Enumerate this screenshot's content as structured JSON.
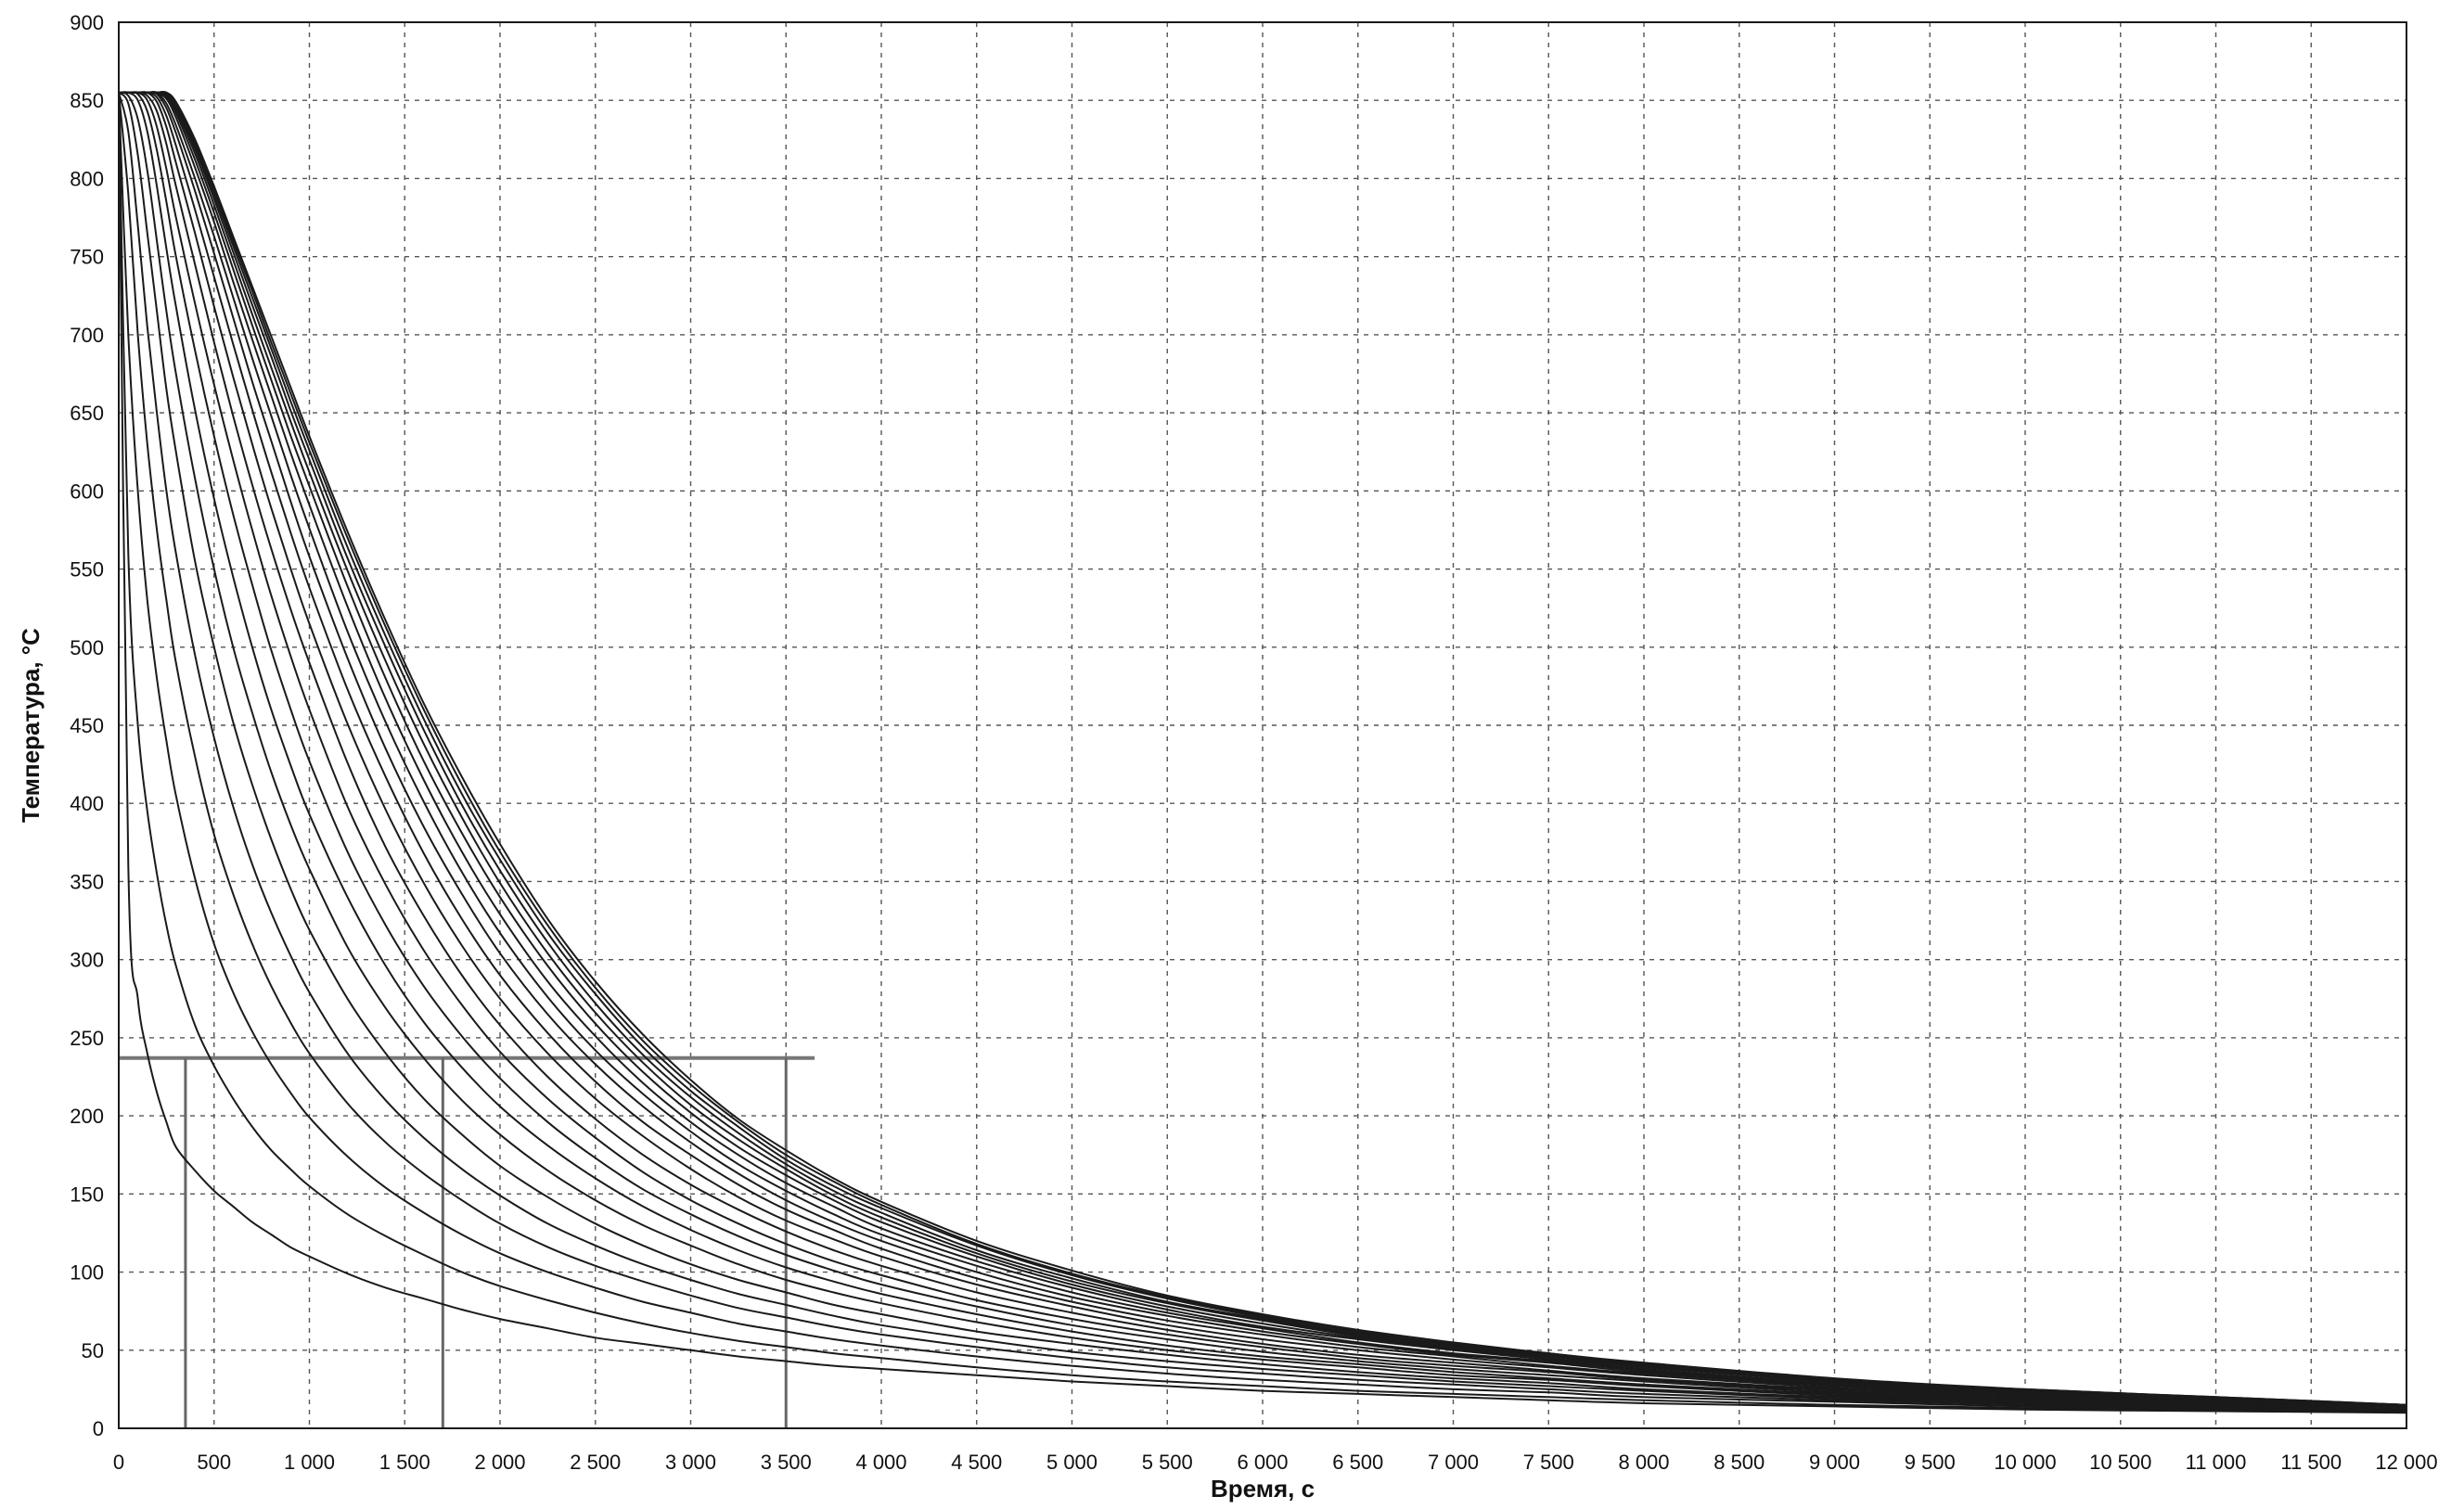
{
  "chart_data": {
    "type": "line",
    "xlabel": "Время, с",
    "ylabel": "Температура, °C",
    "xlim": [
      0,
      12000
    ],
    "ylim": [
      0,
      900
    ],
    "x_ticks": [
      0,
      500,
      1000,
      1500,
      2000,
      2500,
      3000,
      3500,
      4000,
      4500,
      5000,
      5500,
      6000,
      6500,
      7000,
      7500,
      8000,
      8500,
      9000,
      9500,
      10000,
      10500,
      11000,
      11500,
      12000
    ],
    "x_tick_labels": [
      "0",
      "500",
      "1 000",
      "1 500",
      "2 000",
      "2 500",
      "3 000",
      "3 500",
      "4 000",
      "4 500",
      "5 000",
      "5 500",
      "6 000",
      "6 500",
      "7 000",
      "7 500",
      "8 000",
      "8 500",
      "9 000",
      "9 500",
      "10 000",
      "10 500",
      "11 000",
      "11 500",
      "12 000"
    ],
    "y_ticks": [
      0,
      50,
      100,
      150,
      200,
      250,
      300,
      350,
      400,
      450,
      500,
      550,
      600,
      650,
      700,
      750,
      800,
      850,
      900
    ],
    "y_tick_labels": [
      "0",
      "50",
      "100",
      "150",
      "200",
      "250",
      "300",
      "350",
      "400",
      "450",
      "500",
      "550",
      "600",
      "650",
      "700",
      "750",
      "800",
      "850",
      "900"
    ],
    "grid": true,
    "line_color": "#1a1a1a",
    "grid_color": "#555555",
    "x": [
      0,
      50,
      100,
      150,
      200,
      250,
      300,
      400,
      500,
      600,
      700,
      800,
      900,
      1000,
      1200,
      1400,
      1600,
      1800,
      2000,
      2250,
      2500,
      2750,
      3000,
      3250,
      3500,
      3750,
      4000,
      4500,
      5000,
      5500,
      6000,
      6500,
      7000,
      7500,
      8000,
      9000,
      10000,
      11000,
      12000
    ],
    "series": [
      {
        "values": [
          855,
          360,
          275,
          240,
          215,
          196,
          180,
          165,
          152,
          142,
          132,
          124,
          116,
          110,
          99,
          90,
          83,
          76,
          70,
          64,
          58,
          54,
          50,
          46,
          43,
          40,
          38,
          34,
          30,
          27,
          24,
          22,
          20,
          18,
          16,
          14,
          12,
          11,
          10
        ]
      },
      {
        "values": [
          855,
          560,
          450,
          395,
          355,
          322,
          296,
          258,
          232,
          211,
          193,
          178,
          166,
          155,
          137,
          123,
          111,
          100,
          91,
          82,
          74,
          67,
          61,
          56,
          52,
          48,
          45,
          39,
          34,
          30,
          27,
          24,
          22,
          20,
          18,
          15,
          13,
          12,
          11
        ]
      },
      {
        "values": [
          855,
          700,
          600,
          530,
          480,
          440,
          405,
          352,
          310,
          279,
          254,
          233,
          215,
          199,
          174,
          154,
          138,
          124,
          112,
          100,
          90,
          81,
          74,
          67,
          62,
          57,
          53,
          46,
          40,
          35,
          31,
          28,
          25,
          23,
          20,
          17,
          14,
          12,
          11
        ]
      },
      {
        "values": [
          855,
          790,
          700,
          630,
          575,
          530,
          490,
          430,
          380,
          342,
          310,
          283,
          260,
          240,
          208,
          183,
          163,
          146,
          131,
          116,
          104,
          94,
          85,
          77,
          71,
          65,
          60,
          52,
          45,
          39,
          35,
          31,
          28,
          25,
          22,
          18,
          15,
          13,
          11
        ]
      },
      {
        "values": [
          855,
          830,
          770,
          705,
          650,
          600,
          560,
          495,
          442,
          398,
          361,
          330,
          303,
          279,
          240,
          210,
          186,
          166,
          149,
          131,
          117,
          105,
          95,
          86,
          79,
          72,
          66,
          57,
          49,
          43,
          38,
          34,
          30,
          27,
          24,
          19,
          16,
          13,
          12
        ]
      },
      {
        "values": [
          855,
          848,
          815,
          765,
          715,
          665,
          625,
          555,
          500,
          452,
          412,
          377,
          346,
          319,
          275,
          240,
          211,
          188,
          168,
          148,
          131,
          117,
          105,
          95,
          87,
          79,
          73,
          62,
          54,
          47,
          41,
          36,
          32,
          29,
          25,
          20,
          17,
          14,
          12
        ]
      },
      {
        "values": [
          855,
          853,
          838,
          805,
          760,
          715,
          675,
          608,
          550,
          500,
          458,
          420,
          387,
          358,
          308,
          269,
          237,
          210,
          188,
          165,
          146,
          130,
          117,
          105,
          95,
          87,
          80,
          68,
          58,
          50,
          44,
          39,
          34,
          31,
          27,
          21,
          17,
          14,
          12
        ]
      },
      {
        "values": [
          855,
          855,
          850,
          830,
          795,
          755,
          718,
          652,
          595,
          545,
          500,
          460,
          425,
          393,
          340,
          296,
          260,
          231,
          206,
          181,
          160,
          142,
          127,
          114,
          103,
          94,
          86,
          73,
          62,
          53,
          46,
          41,
          36,
          32,
          28,
          22,
          18,
          15,
          12
        ]
      },
      {
        "values": [
          855,
          855,
          854,
          843,
          818,
          785,
          750,
          690,
          635,
          585,
          540,
          498,
          461,
          427,
          369,
          322,
          283,
          251,
          224,
          196,
          173,
          153,
          137,
          123,
          111,
          101,
          92,
          78,
          66,
          57,
          49,
          43,
          38,
          34,
          30,
          23,
          19,
          15,
          13
        ]
      },
      {
        "values": [
          855,
          855,
          855,
          850,
          833,
          806,
          775,
          720,
          668,
          620,
          575,
          533,
          495,
          460,
          398,
          348,
          306,
          271,
          241,
          211,
          186,
          164,
          146,
          131,
          118,
          107,
          98,
          82,
          70,
          60,
          52,
          45,
          40,
          36,
          31,
          24,
          19,
          16,
          13
        ]
      },
      {
        "values": [
          855,
          855,
          855,
          853,
          843,
          822,
          795,
          745,
          695,
          648,
          604,
          563,
          525,
          490,
          426,
          372,
          328,
          290,
          258,
          225,
          198,
          175,
          156,
          140,
          126,
          114,
          104,
          87,
          74,
          63,
          54,
          47,
          42,
          37,
          32,
          25,
          20,
          16,
          13
        ]
      },
      {
        "values": [
          855,
          855,
          855,
          855,
          849,
          833,
          810,
          765,
          718,
          673,
          630,
          589,
          551,
          515,
          451,
          396,
          349,
          309,
          275,
          240,
          211,
          187,
          166,
          148,
          133,
          121,
          110,
          92,
          78,
          66,
          57,
          50,
          44,
          39,
          34,
          26,
          21,
          17,
          13
        ]
      },
      {
        "values": [
          855,
          855,
          855,
          855,
          852,
          840,
          821,
          780,
          737,
          694,
          652,
          612,
          574,
          538,
          473,
          417,
          368,
          326,
          290,
          253,
          222,
          196,
          175,
          156,
          140,
          127,
          115,
          96,
          81,
          69,
          60,
          52,
          46,
          40,
          35,
          27,
          21,
          17,
          14
        ]
      },
      {
        "values": [
          855,
          855,
          855,
          855,
          854,
          845,
          829,
          792,
          752,
          711,
          670,
          632,
          594,
          558,
          493,
          435,
          385,
          342,
          304,
          265,
          233,
          206,
          183,
          163,
          146,
          132,
          120,
          100,
          84,
          72,
          62,
          54,
          47,
          42,
          36,
          28,
          22,
          17,
          14
        ]
      },
      {
        "values": [
          855,
          855,
          855,
          855,
          855,
          848,
          834,
          800,
          763,
          724,
          685,
          648,
          611,
          576,
          510,
          452,
          401,
          356,
          317,
          276,
          242,
          214,
          190,
          169,
          152,
          137,
          124,
          104,
          87,
          74,
          64,
          55,
          48,
          43,
          37,
          28,
          22,
          18,
          14
        ]
      },
      {
        "values": [
          855,
          855,
          855,
          855,
          855,
          851,
          839,
          807,
          772,
          734,
          697,
          661,
          625,
          591,
          526,
          467,
          415,
          369,
          329,
          286,
          251,
          221,
          196,
          175,
          157,
          142,
          128,
          107,
          90,
          76,
          65,
          57,
          50,
          44,
          38,
          29,
          23,
          18,
          14
        ]
      },
      {
        "values": [
          855,
          855,
          855,
          855,
          855,
          852,
          842,
          812,
          778,
          742,
          706,
          671,
          636,
          603,
          539,
          480,
          427,
          381,
          340,
          296,
          259,
          228,
          202,
          180,
          162,
          146,
          132,
          110,
          92,
          78,
          67,
          58,
          51,
          45,
          39,
          30,
          23,
          18,
          14
        ]
      },
      {
        "values": [
          855,
          855,
          855,
          855,
          855,
          853,
          844,
          816,
          783,
          748,
          713,
          679,
          645,
          612,
          549,
          491,
          438,
          391,
          349,
          304,
          266,
          234,
          207,
          185,
          166,
          149,
          135,
          112,
          94,
          80,
          69,
          59,
          52,
          46,
          40,
          30,
          23,
          19,
          15
        ]
      },
      {
        "values": [
          855,
          855,
          855,
          855,
          855,
          854,
          846,
          819,
          787,
          753,
          719,
          686,
          652,
          620,
          557,
          500,
          447,
          399,
          357,
          311,
          272,
          239,
          212,
          189,
          169,
          152,
          138,
          114,
          96,
          81,
          70,
          60,
          53,
          47,
          40,
          31,
          24,
          19,
          15
        ]
      },
      {
        "values": [
          855,
          855,
          855,
          855,
          855,
          854,
          847,
          821,
          790,
          757,
          724,
          691,
          658,
          626,
          564,
          507,
          454,
          406,
          364,
          317,
          278,
          244,
          216,
          193,
          172,
          155,
          141,
          117,
          98,
          83,
          71,
          61,
          54,
          47,
          41,
          31,
          24,
          19,
          15
        ]
      },
      {
        "values": [
          855,
          855,
          855,
          855,
          855,
          855,
          848,
          823,
          793,
          760,
          728,
          695,
          663,
          631,
          570,
          513,
          460,
          412,
          369,
          322,
          282,
          248,
          220,
          196,
          175,
          158,
          143,
          118,
          99,
          84,
          72,
          62,
          54,
          48,
          41,
          31,
          25,
          20,
          15
        ]
      },
      {
        "values": [
          855,
          855,
          855,
          855,
          855,
          855,
          849,
          825,
          795,
          763,
          731,
          699,
          667,
          635,
          574,
          517,
          464,
          417,
          374,
          326,
          286,
          252,
          223,
          198,
          178,
          160,
          145,
          120,
          101,
          85,
          73,
          63,
          55,
          48,
          42,
          32,
          25,
          20,
          15
        ]
      }
    ],
    "annotation_level": 237,
    "annotation_x_start": 0,
    "annotation_x_end": 3650,
    "annotation_verticals": [
      350,
      1700,
      3500
    ]
  }
}
